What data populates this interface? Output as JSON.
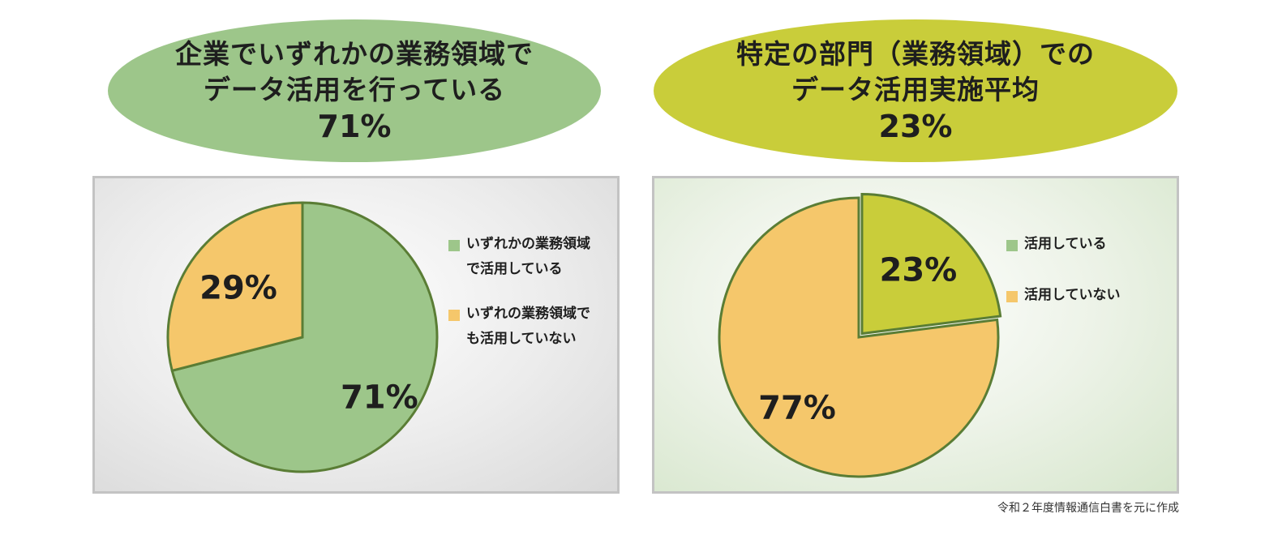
{
  "banners": {
    "left": {
      "line1": "企業でいずれかの業務領域で",
      "line2": "データ活用を行っている",
      "percent": "71%"
    },
    "right": {
      "line1": "特定の部門（業務領域）での",
      "line2": "データ活用実施平均",
      "percent": "23%"
    }
  },
  "colors": {
    "green_banner": "#9dc68a",
    "yellow_green_banner": "#c9cd3a",
    "green_slice": "#9dc68a",
    "yellow_green_slice": "#c9cd3a",
    "orange_slice": "#f5c76b",
    "slice_border": "#5a7d35"
  },
  "chart_data": [
    {
      "type": "pie",
      "slices": [
        {
          "label": "いずれかの業務領域\nで活用している",
          "value": 71,
          "value_label": "71%",
          "color": "#9dc68a"
        },
        {
          "label": "いずれの業務領域で\nも活用していない",
          "value": 29,
          "value_label": "29%",
          "color": "#f5c76b"
        }
      ],
      "legend_position": "right"
    },
    {
      "type": "pie",
      "slices": [
        {
          "label": "活用している",
          "value": 23,
          "value_label": "23%",
          "color": "#c9cd3a"
        },
        {
          "label": "活用していない",
          "value": 77,
          "value_label": "77%",
          "color": "#f5c76b"
        }
      ],
      "legend_position": "right"
    }
  ],
  "source_note": "令和２年度情報通信白書を元に作成"
}
